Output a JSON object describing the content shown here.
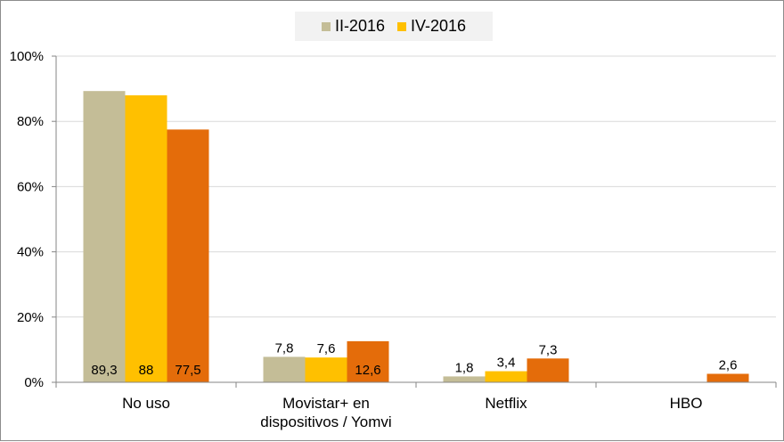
{
  "chart_data": {
    "type": "bar",
    "categories": [
      "No uso",
      "Movistar+ en\ndispositivos / Yomvi",
      "Netflix",
      "HBO"
    ],
    "series": [
      {
        "name": "II-2016",
        "color": "#c4bd97",
        "values": [
          89.3,
          7.8,
          1.8,
          null
        ],
        "labels": [
          "89,3",
          "7,8",
          "1,8",
          ""
        ]
      },
      {
        "name": "IV-2016",
        "color": "#ffc000",
        "values": [
          88,
          7.6,
          3.4,
          null
        ],
        "labels": [
          "88",
          "7,6",
          "3,4",
          ""
        ]
      },
      {
        "name": "",
        "color": "#e46c0a",
        "values": [
          77.5,
          12.6,
          7.3,
          2.6
        ],
        "labels": [
          "77,5",
          "12,6",
          "7,3",
          "2,6"
        ]
      }
    ],
    "ylim": [
      0,
      100
    ],
    "yticks": [
      0,
      20,
      40,
      60,
      80,
      100
    ],
    "ytick_labels": [
      "0%",
      "20%",
      "40%",
      "60%",
      "80%",
      "100%"
    ],
    "grid": true,
    "legend_position": "top-center"
  }
}
